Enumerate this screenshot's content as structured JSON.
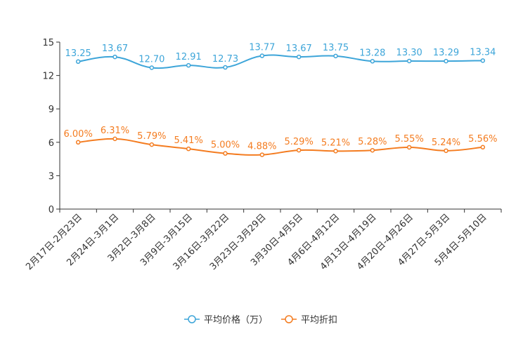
{
  "chart_data": {
    "type": "line",
    "categories": [
      "2月17日-2月23日",
      "2月24日-3月1日",
      "3月2日-3月8日",
      "3月9日-3月15日",
      "3月16日-3月22日",
      "3月23日-3月29日",
      "3月30日-4月5日",
      "4月6日-4月12日",
      "4月13日-4月19日",
      "4月20日-4月26日",
      "4月27日-5月3日",
      "5月4日-5月10日"
    ],
    "ylim": [
      0,
      15
    ],
    "yticks": [
      "0",
      "3",
      "6",
      "9",
      "12",
      "15"
    ],
    "series": [
      {
        "name": "平均价格（万）",
        "color": "#3da5d9",
        "values": [
          13.25,
          13.67,
          12.7,
          12.91,
          12.73,
          13.77,
          13.67,
          13.75,
          13.28,
          13.3,
          13.29,
          13.34
        ],
        "labels": [
          "13.25",
          "13.67",
          "12.70",
          "12.91",
          "12.73",
          "13.77",
          "13.67",
          "13.75",
          "13.28",
          "13.30",
          "13.29",
          "13.34"
        ]
      },
      {
        "name": "平均折扣",
        "color": "#f47c20",
        "values": [
          6.0,
          6.31,
          5.79,
          5.41,
          5.0,
          4.88,
          5.29,
          5.21,
          5.28,
          5.55,
          5.24,
          5.56
        ],
        "labels": [
          "6.00%",
          "6.31%",
          "5.79%",
          "5.41%",
          "5.00%",
          "4.88%",
          "5.29%",
          "5.21%",
          "5.28%",
          "5.55%",
          "5.24%",
          "5.56%"
        ]
      }
    ],
    "legend": {
      "position": "bottom"
    }
  }
}
